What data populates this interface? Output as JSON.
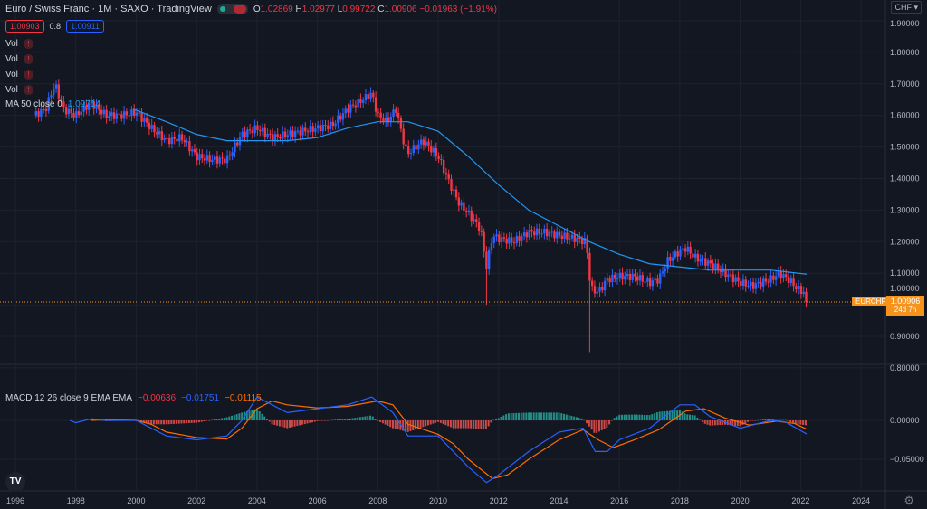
{
  "header": {
    "symbol_title": "Euro / Swiss Franc · 1M · SAXO · TradingView",
    "ohlc": {
      "o_label": "O",
      "o": "1.02869",
      "h_label": "H",
      "h": "1.02977",
      "l_label": "L",
      "l": "0.99722",
      "c_label": "C",
      "c": "1.00906",
      "change": "−0.01963 (−1.91%)"
    },
    "bid": "1.00903",
    "spread": "0.8",
    "ask": "1.00911"
  },
  "indicators": {
    "vol_labels": [
      "Vol",
      "Vol",
      "Vol",
      "Vol"
    ],
    "vol_warning": "!",
    "ma_label": "MA 50 close 0",
    "ma_value": "1.09714",
    "macd_label": "MACD 12 26 close 9 EMA EMA",
    "macd_hist": "−0.00636",
    "macd_line": "−0.01751",
    "macd_signal": "−0.01115"
  },
  "price_axis": {
    "currency": "CHF ▾",
    "ticks": [
      "1.90000",
      "1.80000",
      "1.70000",
      "1.60000",
      "1.50000",
      "1.40000",
      "1.30000",
      "1.20000",
      "1.10000",
      "1.00000",
      "0.90000",
      "0.80000"
    ],
    "last_symbol": "EURCHF",
    "last_price": "1.00906",
    "countdown": "24d 7h"
  },
  "macd_axis": {
    "ticks": [
      "0.00000",
      "−0.05000"
    ]
  },
  "time_axis": {
    "ticks": [
      "1996",
      "1998",
      "2000",
      "2002",
      "2004",
      "2006",
      "2008",
      "2010",
      "2012",
      "2014",
      "2016",
      "2018",
      "2020",
      "2022",
      "2024"
    ]
  },
  "logo": "TV",
  "settings_icon": "gear-icon",
  "colors": {
    "up": "#2962ff",
    "down": "#f23645",
    "ma": "#2196f3",
    "macd": "#2962ff",
    "signal": "#ff6d00",
    "hist_up": "#26a69a",
    "hist_down": "#ef5350",
    "last": "#f7931a",
    "bg": "#131722"
  },
  "chart_data": {
    "type": "line",
    "title": "Euro / Swiss Franc · 1M",
    "xlabel": "",
    "ylabel": "CHF",
    "ylim": [
      0.8,
      1.9
    ],
    "xlim": [
      1996,
      2025
    ],
    "price_close": [
      [
        1996.6,
        1.6
      ],
      [
        1997.0,
        1.62
      ],
      [
        1997.3,
        1.7
      ],
      [
        1997.6,
        1.62
      ],
      [
        1998.0,
        1.6
      ],
      [
        1998.5,
        1.64
      ],
      [
        1999.0,
        1.6
      ],
      [
        1999.5,
        1.6
      ],
      [
        2000.0,
        1.61
      ],
      [
        2000.5,
        1.56
      ],
      [
        2001.0,
        1.52
      ],
      [
        2001.5,
        1.53
      ],
      [
        2002.0,
        1.47
      ],
      [
        2002.5,
        1.46
      ],
      [
        2003.0,
        1.46
      ],
      [
        2003.5,
        1.54
      ],
      [
        2004.0,
        1.56
      ],
      [
        2004.5,
        1.53
      ],
      [
        2005.0,
        1.54
      ],
      [
        2005.5,
        1.55
      ],
      [
        2006.0,
        1.56
      ],
      [
        2006.5,
        1.57
      ],
      [
        2007.0,
        1.62
      ],
      [
        2007.5,
        1.65
      ],
      [
        2007.8,
        1.67
      ],
      [
        2008.0,
        1.6
      ],
      [
        2008.3,
        1.58
      ],
      [
        2008.6,
        1.62
      ],
      [
        2008.9,
        1.5
      ],
      [
        2009.0,
        1.48
      ],
      [
        2009.5,
        1.52
      ],
      [
        2010.0,
        1.47
      ],
      [
        2010.4,
        1.38
      ],
      [
        2010.7,
        1.32
      ],
      [
        2011.0,
        1.29
      ],
      [
        2011.4,
        1.24
      ],
      [
        2011.6,
        1.12
      ],
      [
        2011.8,
        1.22
      ],
      [
        2012.0,
        1.21
      ],
      [
        2012.5,
        1.2
      ],
      [
        2013.0,
        1.23
      ],
      [
        2013.5,
        1.23
      ],
      [
        2014.0,
        1.22
      ],
      [
        2014.5,
        1.21
      ],
      [
        2014.9,
        1.2
      ],
      [
        2015.05,
        1.05
      ],
      [
        2015.3,
        1.04
      ],
      [
        2015.6,
        1.08
      ],
      [
        2016.0,
        1.09
      ],
      [
        2016.5,
        1.09
      ],
      [
        2017.0,
        1.07
      ],
      [
        2017.3,
        1.08
      ],
      [
        2017.6,
        1.14
      ],
      [
        2018.0,
        1.17
      ],
      [
        2018.2,
        1.18
      ],
      [
        2018.5,
        1.15
      ],
      [
        2019.0,
        1.13
      ],
      [
        2019.5,
        1.1
      ],
      [
        2020.0,
        1.07
      ],
      [
        2020.4,
        1.06
      ],
      [
        2020.7,
        1.07
      ],
      [
        2021.0,
        1.08
      ],
      [
        2021.3,
        1.1
      ],
      [
        2021.6,
        1.08
      ],
      [
        2021.9,
        1.05
      ],
      [
        2022.1,
        1.04
      ],
      [
        2022.2,
        1.009
      ]
    ],
    "notable_lows": [
      [
        2011.6,
        1.0
      ],
      [
        2015.05,
        0.85
      ]
    ],
    "ma50": [
      [
        1999.9,
        1.62
      ],
      [
        2001,
        1.58
      ],
      [
        2002,
        1.54
      ],
      [
        2003,
        1.52
      ],
      [
        2004,
        1.52
      ],
      [
        2005,
        1.52
      ],
      [
        2006,
        1.53
      ],
      [
        2007,
        1.56
      ],
      [
        2008,
        1.58
      ],
      [
        2009,
        1.58
      ],
      [
        2010,
        1.55
      ],
      [
        2011,
        1.47
      ],
      [
        2012,
        1.38
      ],
      [
        2013,
        1.3
      ],
      [
        2014,
        1.25
      ],
      [
        2015,
        1.2
      ],
      [
        2016,
        1.16
      ],
      [
        2017,
        1.13
      ],
      [
        2018,
        1.12
      ],
      [
        2019,
        1.11
      ],
      [
        2020,
        1.11
      ],
      [
        2021,
        1.11
      ],
      [
        2022.2,
        1.097
      ]
    ],
    "macd_line": [
      [
        1997.8,
        0
      ],
      [
        1998.0,
        -0.003
      ],
      [
        1998.5,
        0.002
      ],
      [
        1999,
        0
      ],
      [
        2000,
        0
      ],
      [
        2000.5,
        -0.01
      ],
      [
        2001,
        -0.02
      ],
      [
        2002,
        -0.025
      ],
      [
        2003,
        -0.02
      ],
      [
        2003.5,
        0
      ],
      [
        2004,
        0.03
      ],
      [
        2005,
        0.01
      ],
      [
        2006,
        0.015
      ],
      [
        2007,
        0.02
      ],
      [
        2007.8,
        0.03
      ],
      [
        2008.5,
        0.01
      ],
      [
        2009,
        -0.02
      ],
      [
        2010,
        -0.02
      ],
      [
        2010.5,
        -0.04
      ],
      [
        2011,
        -0.06
      ],
      [
        2011.6,
        -0.08
      ],
      [
        2012,
        -0.07
      ],
      [
        2013,
        -0.04
      ],
      [
        2014,
        -0.015
      ],
      [
        2014.8,
        -0.01
      ],
      [
        2015.2,
        -0.04
      ],
      [
        2015.6,
        -0.04
      ],
      [
        2016,
        -0.025
      ],
      [
        2017,
        -0.01
      ],
      [
        2018,
        0.02
      ],
      [
        2018.5,
        0.02
      ],
      [
        2019,
        0.005
      ],
      [
        2020,
        -0.01
      ],
      [
        2021,
        0.0
      ],
      [
        2021.5,
        -0.002
      ],
      [
        2022.2,
        -0.0175
      ]
    ],
    "macd_signal": [
      [
        1998.5,
        0
      ],
      [
        1999,
        0.001
      ],
      [
        2000,
        0
      ],
      [
        2000.5,
        -0.005
      ],
      [
        2001,
        -0.015
      ],
      [
        2002,
        -0.022
      ],
      [
        2003,
        -0.024
      ],
      [
        2003.5,
        -0.01
      ],
      [
        2004,
        0.015
      ],
      [
        2004.5,
        0.025
      ],
      [
        2005,
        0.02
      ],
      [
        2006,
        0.016
      ],
      [
        2007,
        0.018
      ],
      [
        2008,
        0.025
      ],
      [
        2008.5,
        0.02
      ],
      [
        2009,
        -0.005
      ],
      [
        2010,
        -0.018
      ],
      [
        2010.5,
        -0.03
      ],
      [
        2011,
        -0.05
      ],
      [
        2011.8,
        -0.075
      ],
      [
        2012.3,
        -0.07
      ],
      [
        2013,
        -0.05
      ],
      [
        2014,
        -0.025
      ],
      [
        2014.8,
        -0.012
      ],
      [
        2015.3,
        -0.025
      ],
      [
        2015.8,
        -0.035
      ],
      [
        2016.5,
        -0.025
      ],
      [
        2017.3,
        -0.012
      ],
      [
        2018.2,
        0.012
      ],
      [
        2018.8,
        0.015
      ],
      [
        2019.5,
        0.003
      ],
      [
        2020.3,
        -0.006
      ],
      [
        2021.2,
        -0.001
      ],
      [
        2021.8,
        -0.004
      ],
      [
        2022.2,
        -0.0112
      ]
    ],
    "grid": true,
    "legend": "top-left"
  }
}
